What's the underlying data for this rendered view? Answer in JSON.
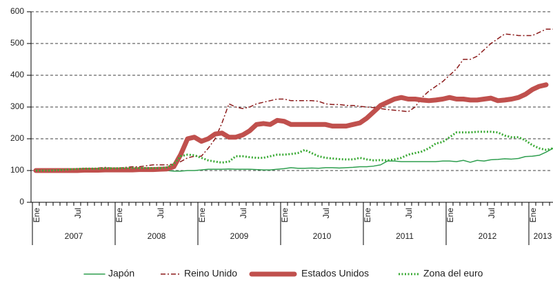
{
  "chart_data": {
    "type": "line",
    "categories": [
      "Ene",
      null,
      null,
      null,
      null,
      null,
      "Jul",
      null,
      null,
      null,
      null,
      null,
      "Ene",
      null,
      null,
      null,
      null,
      null,
      "Jul",
      null,
      null,
      null,
      null,
      null,
      "Ene",
      null,
      null,
      null,
      null,
      null,
      "Jul",
      null,
      null,
      null,
      null,
      null,
      "Ene",
      null,
      null,
      null,
      null,
      null,
      "Jul",
      null,
      null,
      null,
      null,
      null,
      "Ene",
      null,
      null,
      null,
      null,
      null,
      "Jul",
      null,
      null,
      null,
      null,
      null,
      "Ene",
      null,
      null,
      null,
      null,
      null,
      "Jul",
      null,
      null,
      null,
      null,
      null,
      "Ene",
      null,
      null,
      null
    ],
    "years": [
      "2007",
      "2008",
      "2009",
      "2010",
      "2011",
      "2012",
      "2013"
    ],
    "ylim": [
      0,
      600
    ],
    "yticks": [
      0,
      100,
      200,
      300,
      400,
      500,
      600
    ],
    "grid": true,
    "series": [
      {
        "name": "Japón",
        "color": "#2e9e4f",
        "style": "solid",
        "values": [
          98,
          98,
          98,
          100,
          100,
          100,
          101,
          101,
          101,
          100,
          100,
          100,
          100,
          100,
          100,
          100,
          100,
          100,
          100,
          100,
          98,
          98,
          100,
          100,
          102,
          104,
          104,
          104,
          105,
          104,
          104,
          104,
          103,
          102,
          102,
          104,
          106,
          109,
          107,
          107,
          108,
          107,
          109,
          109,
          108,
          109,
          110,
          112,
          112,
          114,
          118,
          130,
          130,
          128,
          128,
          128,
          128,
          128,
          128,
          130,
          130,
          128,
          132,
          126,
          132,
          130,
          134,
          135,
          137,
          136,
          138,
          144,
          145,
          148,
          158,
          170
        ]
      },
      {
        "name": "Reino Unido",
        "color": "#8b1a1a",
        "style": "dashdot",
        "values": [
          100,
          100,
          100,
          101,
          102,
          103,
          104,
          105,
          106,
          108,
          110,
          108,
          108,
          110,
          112,
          112,
          115,
          118,
          118,
          118,
          120,
          128,
          140,
          145,
          145,
          170,
          200,
          250,
          310,
          300,
          295,
          300,
          310,
          315,
          320,
          325,
          325,
          320,
          320,
          320,
          320,
          318,
          310,
          308,
          308,
          305,
          305,
          302,
          300,
          298,
          295,
          292,
          290,
          288,
          285,
          300,
          330,
          350,
          365,
          380,
          400,
          420,
          450,
          450,
          460,
          480,
          500,
          515,
          530,
          528,
          525,
          525,
          525,
          535,
          545,
          545
        ]
      },
      {
        "name": "Estados Unidos",
        "color": "#c0504d",
        "style": "thick",
        "values": [
          100,
          100,
          100,
          100,
          100,
          100,
          100,
          101,
          101,
          101,
          102,
          102,
          102,
          102,
          102,
          103,
          103,
          103,
          104,
          105,
          112,
          150,
          200,
          205,
          192,
          200,
          215,
          218,
          205,
          205,
          212,
          225,
          245,
          248,
          245,
          258,
          255,
          245,
          245,
          245,
          245,
          245,
          245,
          240,
          240,
          240,
          245,
          250,
          265,
          285,
          305,
          315,
          325,
          330,
          325,
          325,
          322,
          320,
          322,
          325,
          330,
          325,
          325,
          322,
          322,
          325,
          328,
          320,
          322,
          325,
          330,
          340,
          355,
          365,
          370,
          null
        ]
      },
      {
        "name": "Zona del euro",
        "color": "#3aaa35",
        "style": "dotted",
        "values": [
          100,
          100,
          100,
          101,
          102,
          104,
          105,
          106,
          106,
          106,
          107,
          107,
          107,
          108,
          108,
          108,
          108,
          108,
          108,
          110,
          120,
          145,
          150,
          148,
          140,
          132,
          128,
          125,
          128,
          145,
          145,
          142,
          140,
          140,
          145,
          150,
          150,
          152,
          155,
          165,
          155,
          145,
          140,
          138,
          136,
          135,
          135,
          140,
          135,
          132,
          133,
          132,
          135,
          140,
          150,
          155,
          160,
          170,
          185,
          190,
          205,
          220,
          220,
          220,
          222,
          222,
          222,
          220,
          210,
          205,
          205,
          195,
          180,
          170,
          165,
          170
        ]
      }
    ]
  }
}
